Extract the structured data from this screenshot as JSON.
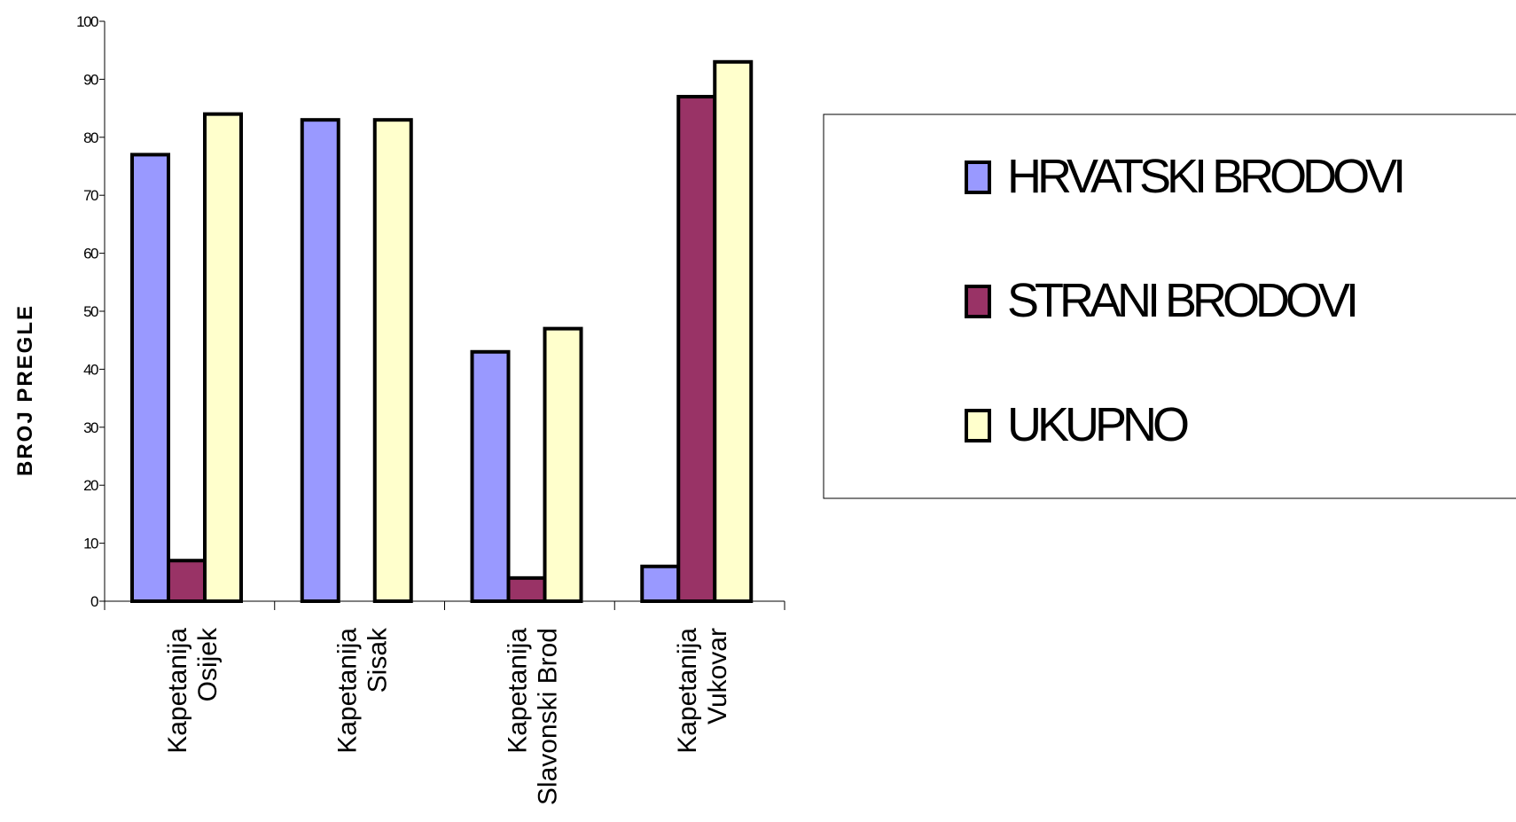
{
  "chart_data": {
    "type": "bar",
    "title": "",
    "xlabel": "",
    "ylabel": "BROJ PREGLE",
    "ylim": [
      0,
      100
    ],
    "yticks": [
      0,
      10,
      20,
      30,
      40,
      50,
      60,
      70,
      80,
      90,
      100
    ],
    "categories": [
      [
        "Kapetanija",
        "Osijek"
      ],
      [
        "Kapetanija",
        "Sisak"
      ],
      [
        "Kapetanija",
        "Slavonski Brod"
      ],
      [
        "Kapetanija",
        "Vukovar"
      ]
    ],
    "series": [
      {
        "name": "HRVATSKI BRODOVI",
        "color": "#9999ff",
        "values": [
          77,
          83,
          43,
          6
        ]
      },
      {
        "name": "STRANI BRODOVI",
        "color": "#993366",
        "values": [
          7,
          0,
          4,
          87
        ]
      },
      {
        "name": "UKUPNO",
        "color": "#ffffcc",
        "values": [
          84,
          83,
          47,
          93
        ]
      }
    ],
    "legend_position": "right",
    "grid": false
  }
}
